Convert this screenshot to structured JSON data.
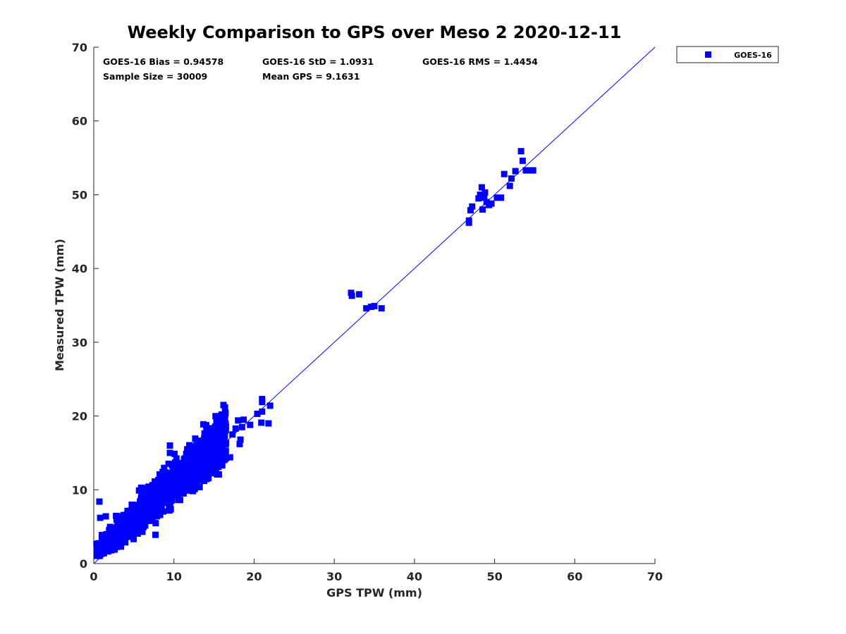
{
  "chart_data": {
    "type": "scatter",
    "title": "Weekly Comparison to GPS over Meso 2 2020-12-11",
    "xlabel": "GPS TPW (mm)",
    "ylabel": "Measured TPW (mm)",
    "xlim": [
      0,
      70
    ],
    "ylim": [
      0,
      70
    ],
    "xticks": [
      0,
      10,
      20,
      30,
      40,
      50,
      60,
      70
    ],
    "yticks": [
      0,
      10,
      20,
      30,
      40,
      50,
      60,
      70
    ],
    "grid": false,
    "legend_position": "outside-top-right",
    "stats": {
      "bias": "GOES-16 Bias = 0.94578",
      "std": "GOES-16 StD = 1.0931",
      "rms": "GOES-16 RMS = 1.4454",
      "sample_size": "Sample Size = 30009",
      "mean_gps": "Mean GPS = 9.1631"
    },
    "reference_line": {
      "name": "1:1",
      "x": [
        0,
        70
      ],
      "y": [
        0,
        70
      ],
      "color": "#0000ff"
    },
    "series": [
      {
        "name": "GOES-16",
        "color": "#0000ff",
        "marker": "square",
        "cluster": {
          "count": 1200,
          "x_range": [
            0.3,
            16.5
          ],
          "slope": 0.98,
          "offset": 1.2,
          "spread": 1.3
        },
        "points": [
          [
            0.7,
            8.4
          ],
          [
            0.8,
            6.2
          ],
          [
            1.5,
            6.4
          ],
          [
            3.0,
            6.4
          ],
          [
            3.4,
            2.3
          ],
          [
            7.7,
            3.9
          ],
          [
            9.5,
            16.0
          ],
          [
            9.5,
            15.0
          ],
          [
            16.3,
            19.5
          ],
          [
            17.0,
            14.4
          ],
          [
            17.3,
            17.5
          ],
          [
            17.7,
            18.3
          ],
          [
            18.0,
            19.4
          ],
          [
            18.3,
            16.8
          ],
          [
            18.5,
            18.5
          ],
          [
            18.2,
            16.2
          ],
          [
            18.7,
            19.5
          ],
          [
            19.5,
            18.8
          ],
          [
            20.4,
            20.3
          ],
          [
            21.0,
            22.3
          ],
          [
            21.0,
            21.9
          ],
          [
            21.0,
            20.6
          ],
          [
            20.9,
            19.1
          ],
          [
            21.8,
            19.0
          ],
          [
            22.0,
            21.4
          ],
          [
            0.5,
            1.9
          ],
          [
            1.0,
            1.5
          ],
          [
            1.5,
            1.7
          ],
          [
            2.2,
            1.8
          ],
          [
            2.6,
            1.9
          ],
          [
            1.8,
            3.0
          ],
          [
            32.1,
            36.7
          ],
          [
            32.2,
            36.3
          ],
          [
            33.1,
            36.5
          ],
          [
            34.0,
            34.6
          ],
          [
            34.6,
            34.8
          ],
          [
            35.0,
            34.9
          ],
          [
            35.9,
            34.6
          ],
          [
            46.8,
            46.5
          ],
          [
            46.8,
            46.2
          ],
          [
            47.0,
            47.9
          ],
          [
            47.2,
            48.4
          ],
          [
            48.0,
            49.5
          ],
          [
            48.2,
            50.0
          ],
          [
            48.4,
            51.0
          ],
          [
            48.5,
            48.0
          ],
          [
            48.7,
            49.6
          ],
          [
            48.8,
            50.3
          ],
          [
            49.0,
            49.0
          ],
          [
            49.3,
            48.6
          ],
          [
            49.6,
            48.8
          ],
          [
            50.3,
            49.6
          ],
          [
            50.8,
            49.6
          ],
          [
            51.2,
            52.8
          ],
          [
            51.9,
            51.2
          ],
          [
            52.1,
            52.2
          ],
          [
            52.6,
            53.2
          ],
          [
            53.3,
            55.9
          ],
          [
            53.5,
            54.6
          ],
          [
            53.9,
            53.3
          ],
          [
            54.5,
            53.3
          ],
          [
            54.8,
            53.3
          ]
        ]
      }
    ]
  }
}
